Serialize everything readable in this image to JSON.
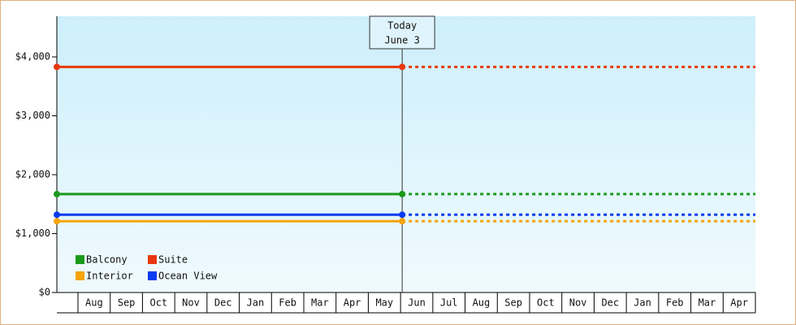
{
  "chart_data": {
    "type": "line",
    "categories": [
      null,
      "Aug",
      "Sep",
      "Oct",
      "Nov",
      "Dec",
      "Jan",
      "Feb",
      "Mar",
      "Apr",
      "May",
      "Jun",
      "Jul",
      "Aug",
      "Sep",
      "Oct",
      "Nov",
      "Dec",
      "Jan",
      "Feb",
      "Mar",
      "Apr"
    ],
    "series": [
      {
        "name": "Balcony",
        "color": "#1a9a1a",
        "value": 1670
      },
      {
        "name": "Suite",
        "color": "#e8380d",
        "value": 3830
      },
      {
        "name": "Interior",
        "color": "#f5a40a",
        "value": 1210
      },
      {
        "name": "Ocean View",
        "color": "#0a3cf0",
        "value": 1320
      }
    ],
    "ylim": [
      0,
      4690
    ],
    "yticks": [
      {
        "value": 0,
        "label": "$0"
      },
      {
        "value": 1000,
        "label": "$1,000"
      },
      {
        "value": 2000,
        "label": "$2,000"
      },
      {
        "value": 3000,
        "label": "$3,000"
      },
      {
        "value": 4000,
        "label": "$4,000"
      }
    ],
    "annotation": [
      "Today",
      "June 3"
    ]
  }
}
